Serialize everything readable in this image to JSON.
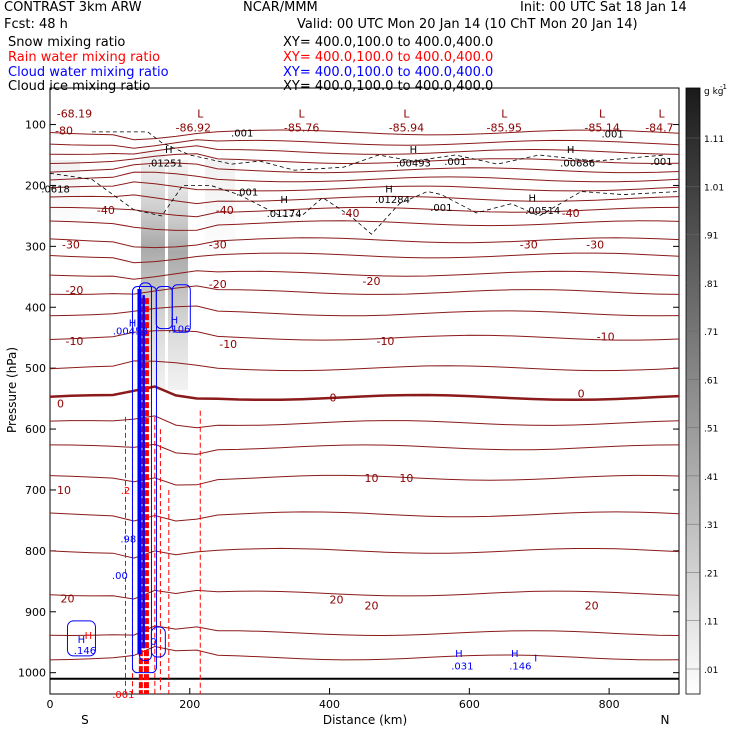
{
  "header": {
    "product": "CONTRAST  3km ARW",
    "fcst": "Fcst:    48 h",
    "org": "NCAR/MMM",
    "init": "Init: 00 UTC Sat 18 Jan 14",
    "valid": "Valid: 00 UTC Mon 20 Jan 14   (10 ChT Mon 20 Jan 14)"
  },
  "legend": [
    {
      "name": "Snow mixing ratio",
      "xy": "XY=  400.0,100.0 to 400.0,400.0",
      "color": "#000000"
    },
    {
      "name": "Rain water mixing ratio",
      "xy": "XY=  400.0,100.0 to 400.0,400.0",
      "color": "#ff0000"
    },
    {
      "name": "Cloud water mixing ratio",
      "xy": "XY=  400.0,100.0 to 400.0,400.0",
      "color": "#0000ff"
    },
    {
      "name": "Cloud ice mixing ratio",
      "xy": "XY=  400.0,100.0 to 400.0,400.0",
      "color": "#000000"
    }
  ],
  "chart_data": {
    "type": "contour cross-section",
    "xlabel": "Distance (km)",
    "ylabel": "Pressure (hPa)",
    "xlim": [
      0,
      900
    ],
    "ylim": [
      1035,
      40
    ],
    "x_ticks": [
      0,
      200,
      400,
      600,
      800
    ],
    "y_ticks": [
      100,
      200,
      300,
      400,
      500,
      600,
      700,
      800,
      900,
      1000
    ],
    "x_end_labels": {
      "left": "S",
      "right": "N"
    },
    "colorbar": {
      "units": "g kg",
      "units_exp": "-1",
      "ticks": [
        "1.11",
        "1.01",
        ".91",
        ".81",
        ".71",
        ".61",
        ".51",
        ".41",
        ".31",
        ".21",
        ".11",
        ".01"
      ]
    },
    "temperature_labels": [
      {
        "text": "-68.19",
        "x": 35,
        "p": 82,
        "color": "#8b0000"
      },
      {
        "text": "-80",
        "x": 20,
        "p": 110,
        "color": "#8b0000"
      },
      {
        "text": "-86.92",
        "x": 205,
        "p": 105,
        "color": "#8b0000"
      },
      {
        "text": "-85.76",
        "x": 360,
        "p": 105,
        "color": "#8b0000"
      },
      {
        "text": "-85.94",
        "x": 510,
        "p": 105,
        "color": "#8b0000"
      },
      {
        "text": "-85.95",
        "x": 650,
        "p": 105,
        "color": "#8b0000"
      },
      {
        "text": "-85.14",
        "x": 790,
        "p": 105,
        "color": "#8b0000"
      },
      {
        "text": "-84.7",
        "x": 872,
        "p": 105,
        "color": "#8b0000"
      },
      {
        "text": "-40",
        "x": 80,
        "p": 240,
        "color": "#8b0000"
      },
      {
        "text": "-40",
        "x": 250,
        "p": 240,
        "color": "#8b0000"
      },
      {
        "text": "-40",
        "x": 430,
        "p": 245,
        "color": "#8b0000"
      },
      {
        "text": "-40",
        "x": 745,
        "p": 245,
        "color": "#8b0000"
      },
      {
        "text": "-30",
        "x": 30,
        "p": 297,
        "color": "#8b0000"
      },
      {
        "text": "-30",
        "x": 240,
        "p": 297,
        "color": "#8b0000"
      },
      {
        "text": "-30",
        "x": 685,
        "p": 297,
        "color": "#8b0000"
      },
      {
        "text": "-30",
        "x": 780,
        "p": 297,
        "color": "#8b0000"
      },
      {
        "text": "-20",
        "x": 35,
        "p": 372,
        "color": "#8b0000"
      },
      {
        "text": "-20",
        "x": 240,
        "p": 362,
        "color": "#8b0000"
      },
      {
        "text": "-20",
        "x": 460,
        "p": 357,
        "color": "#8b0000"
      },
      {
        "text": "-10",
        "x": 35,
        "p": 455,
        "color": "#8b0000"
      },
      {
        "text": "-10",
        "x": 255,
        "p": 460,
        "color": "#8b0000"
      },
      {
        "text": "-10",
        "x": 480,
        "p": 455,
        "color": "#8b0000"
      },
      {
        "text": "-10",
        "x": 795,
        "p": 448,
        "color": "#8b0000"
      },
      {
        "text": "0",
        "x": 15,
        "p": 558,
        "color": "#8b0000"
      },
      {
        "text": "0",
        "x": 405,
        "p": 548,
        "color": "#8b0000"
      },
      {
        "text": "0",
        "x": 760,
        "p": 542,
        "color": "#8b0000"
      },
      {
        "text": "10",
        "x": 20,
        "p": 700,
        "color": "#8b0000"
      },
      {
        "text": "10",
        "x": 460,
        "p": 680,
        "color": "#8b0000"
      },
      {
        "text": "10",
        "x": 510,
        "p": 680,
        "color": "#8b0000"
      },
      {
        "text": "20",
        "x": 25,
        "p": 878,
        "color": "#8b0000"
      },
      {
        "text": "20",
        "x": 410,
        "p": 880,
        "color": "#8b0000"
      },
      {
        "text": "20",
        "x": 460,
        "p": 890,
        "color": "#8b0000"
      },
      {
        "text": "20",
        "x": 775,
        "p": 890,
        "color": "#8b0000"
      }
    ],
    "extremum_labels": [
      {
        "kind": "L",
        "text": "-86.92",
        "x": 215,
        "p": 82
      },
      {
        "kind": "L",
        "text": "-85.76",
        "x": 360,
        "p": 82
      },
      {
        "kind": "L",
        "text": "-85.94",
        "x": 510,
        "p": 82
      },
      {
        "kind": "L",
        "text": "-85.95",
        "x": 650,
        "p": 82
      },
      {
        "kind": "L",
        "text": "-85.14",
        "x": 790,
        "p": 82
      },
      {
        "kind": "L",
        "text": "-84.7",
        "x": 875,
        "p": 82
      }
    ],
    "cloud_ice_labels": [
      {
        "text": "H",
        "x": 170,
        "p": 140
      },
      {
        "text": ".01251",
        "x": 165,
        "p": 162
      },
      {
        "text": "H",
        "x": 520,
        "p": 140
      },
      {
        "text": ".00493",
        "x": 520,
        "p": 162
      },
      {
        "text": "H",
        "x": 745,
        "p": 140
      },
      {
        "text": ".00686",
        "x": 755,
        "p": 162
      },
      {
        "text": ".001",
        "x": 580,
        "p": 160
      },
      {
        "text": ".001",
        "x": 875,
        "p": 160
      },
      {
        "text": ".001",
        "x": 275,
        "p": 113
      },
      {
        "text": ".001",
        "x": 805,
        "p": 115
      },
      {
        "text": ".0618",
        "x": 8,
        "p": 205
      },
      {
        "text": ".001",
        "x": 282,
        "p": 210
      },
      {
        "text": "H",
        "x": 335,
        "p": 222
      },
      {
        "text": ".01174",
        "x": 335,
        "p": 245
      },
      {
        "text": "H",
        "x": 485,
        "p": 205
      },
      {
        "text": ".01284",
        "x": 490,
        "p": 222
      },
      {
        "text": ".001",
        "x": 560,
        "p": 235
      },
      {
        "text": "H",
        "x": 690,
        "p": 220
      },
      {
        "text": ".00514",
        "x": 705,
        "p": 240
      }
    ],
    "cloud_water_labels": [
      {
        "text": "H",
        "x": 118,
        "p": 425
      },
      {
        "text": ".00458",
        "x": 115,
        "p": 438
      },
      {
        "text": "H",
        "x": 178,
        "p": 420
      },
      {
        "text": ".106",
        "x": 185,
        "p": 435
      },
      {
        "text": ".98",
        "x": 112,
        "p": 780
      },
      {
        "text": ".00",
        "x": 100,
        "p": 840
      },
      {
        "text": "H",
        "x": 45,
        "p": 945
      },
      {
        "text": ".146",
        "x": 50,
        "p": 963
      },
      {
        "text": "0",
        "x": 148,
        "p": 948
      },
      {
        "text": "H",
        "x": 585,
        "p": 968
      },
      {
        "text": ".031",
        "x": 590,
        "p": 988
      },
      {
        "text": "H",
        "x": 665,
        "p": 968
      },
      {
        "text": ".146",
        "x": 673,
        "p": 988
      },
      {
        "text": "I",
        "x": 695,
        "p": 975
      }
    ],
    "rain_labels": [
      {
        "text": "H",
        "x": 55,
        "p": 938
      },
      {
        "text": ".001",
        "x": 105,
        "p": 1035
      },
      {
        "text": ".2",
        "x": 108,
        "p": 700
      }
    ],
    "isotherms_celsius": [
      -80,
      -70,
      -60,
      -50,
      -40,
      -30,
      -20,
      -10,
      0,
      10,
      20
    ],
    "surface_pressure": 1010
  }
}
